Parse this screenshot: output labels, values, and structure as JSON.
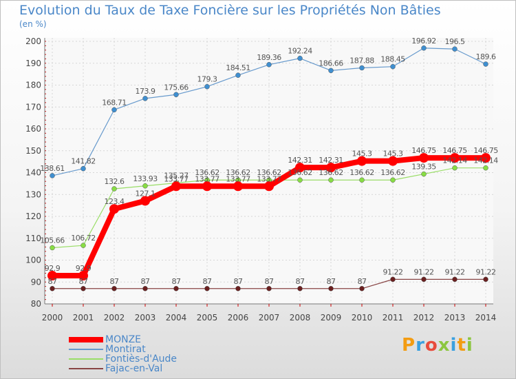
{
  "title": "Evolution du Taux de Taxe Foncière sur les Propriétés Non Bâties",
  "ylabel": "(en %)",
  "brand": {
    "text": "Proxiti",
    "colors": [
      "#f39c12",
      "#3aa0e0",
      "#e84c3d",
      "#8cc63f",
      "#3aa0e0",
      "#f39c12",
      "#8cc63f"
    ]
  },
  "chart_data": {
    "type": "line",
    "x": [
      "2000",
      "2001",
      "2002",
      "2003",
      "2004",
      "2005",
      "2006",
      "2007",
      "2008",
      "2009",
      "2010",
      "2011",
      "2012",
      "2013",
      "2014"
    ],
    "ylim": [
      80,
      200
    ],
    "yticks": [
      80,
      90,
      100,
      110,
      120,
      130,
      140,
      150,
      160,
      170,
      180,
      190,
      200
    ],
    "grid": true,
    "series": [
      {
        "name": "MONZE",
        "color": "#ff0000",
        "markerColor": "#ff0000",
        "width": 8,
        "values": [
          92.9,
          92.9,
          123.4,
          127.1,
          133.77,
          133.77,
          133.77,
          133.77,
          142.31,
          142.31,
          145.3,
          145.3,
          146.75,
          146.75,
          146.75
        ],
        "labels": [
          "92.9",
          "92.9",
          "123.4",
          "127.1",
          "133.77",
          "133.77",
          "133.77",
          "133.77",
          "142.31",
          "142.31",
          "145.3",
          "145.3",
          "146.75",
          "146.75",
          "146.75"
        ]
      },
      {
        "name": "Montirat",
        "color": "#6699cc",
        "markerColor": "#3f8fd0",
        "width": 1.2,
        "values": [
          138.61,
          141.82,
          168.71,
          173.9,
          175.66,
          179.3,
          184.51,
          189.36,
          192.24,
          186.66,
          187.88,
          188.45,
          196.92,
          196.5,
          189.6
        ],
        "labels": [
          "138.61",
          "141.82",
          "168.71",
          "173.9",
          "175.66",
          "179.3",
          "184.51",
          "189.36",
          "192.24",
          "186.66",
          "187.88",
          "188.45",
          "196.92",
          "196.5",
          "189.6"
        ]
      },
      {
        "name": "Fontiès-d'Aude",
        "color": "#99dd66",
        "markerColor": "#88dd44",
        "width": 1.2,
        "values": [
          105.66,
          106.72,
          132.6,
          133.93,
          135.27,
          136.62,
          136.62,
          136.62,
          136.62,
          136.62,
          136.62,
          136.62,
          139.35,
          142.14,
          142.14
        ],
        "labels": [
          "105.66",
          "106.72",
          "132.6",
          "133.93",
          "135.27",
          "136.62",
          "136.62",
          "136.62",
          "136.62",
          "136.62",
          "136.62",
          "136.62",
          "139.35",
          "142.14",
          "142.14"
        ]
      },
      {
        "name": "Fajac-en-Val",
        "color": "#884444",
        "markerColor": "#6b2020",
        "width": 1.2,
        "values": [
          87,
          87,
          87,
          87,
          87,
          87,
          87,
          87,
          87,
          87,
          87,
          91.22,
          91.22,
          91.22,
          91.22
        ],
        "labels": [
          "87",
          "87",
          "87",
          "87",
          "87",
          "87",
          "87",
          "87",
          "87",
          "87",
          "87",
          "91.22",
          "91.22",
          "91.22",
          "91.22"
        ]
      }
    ]
  }
}
